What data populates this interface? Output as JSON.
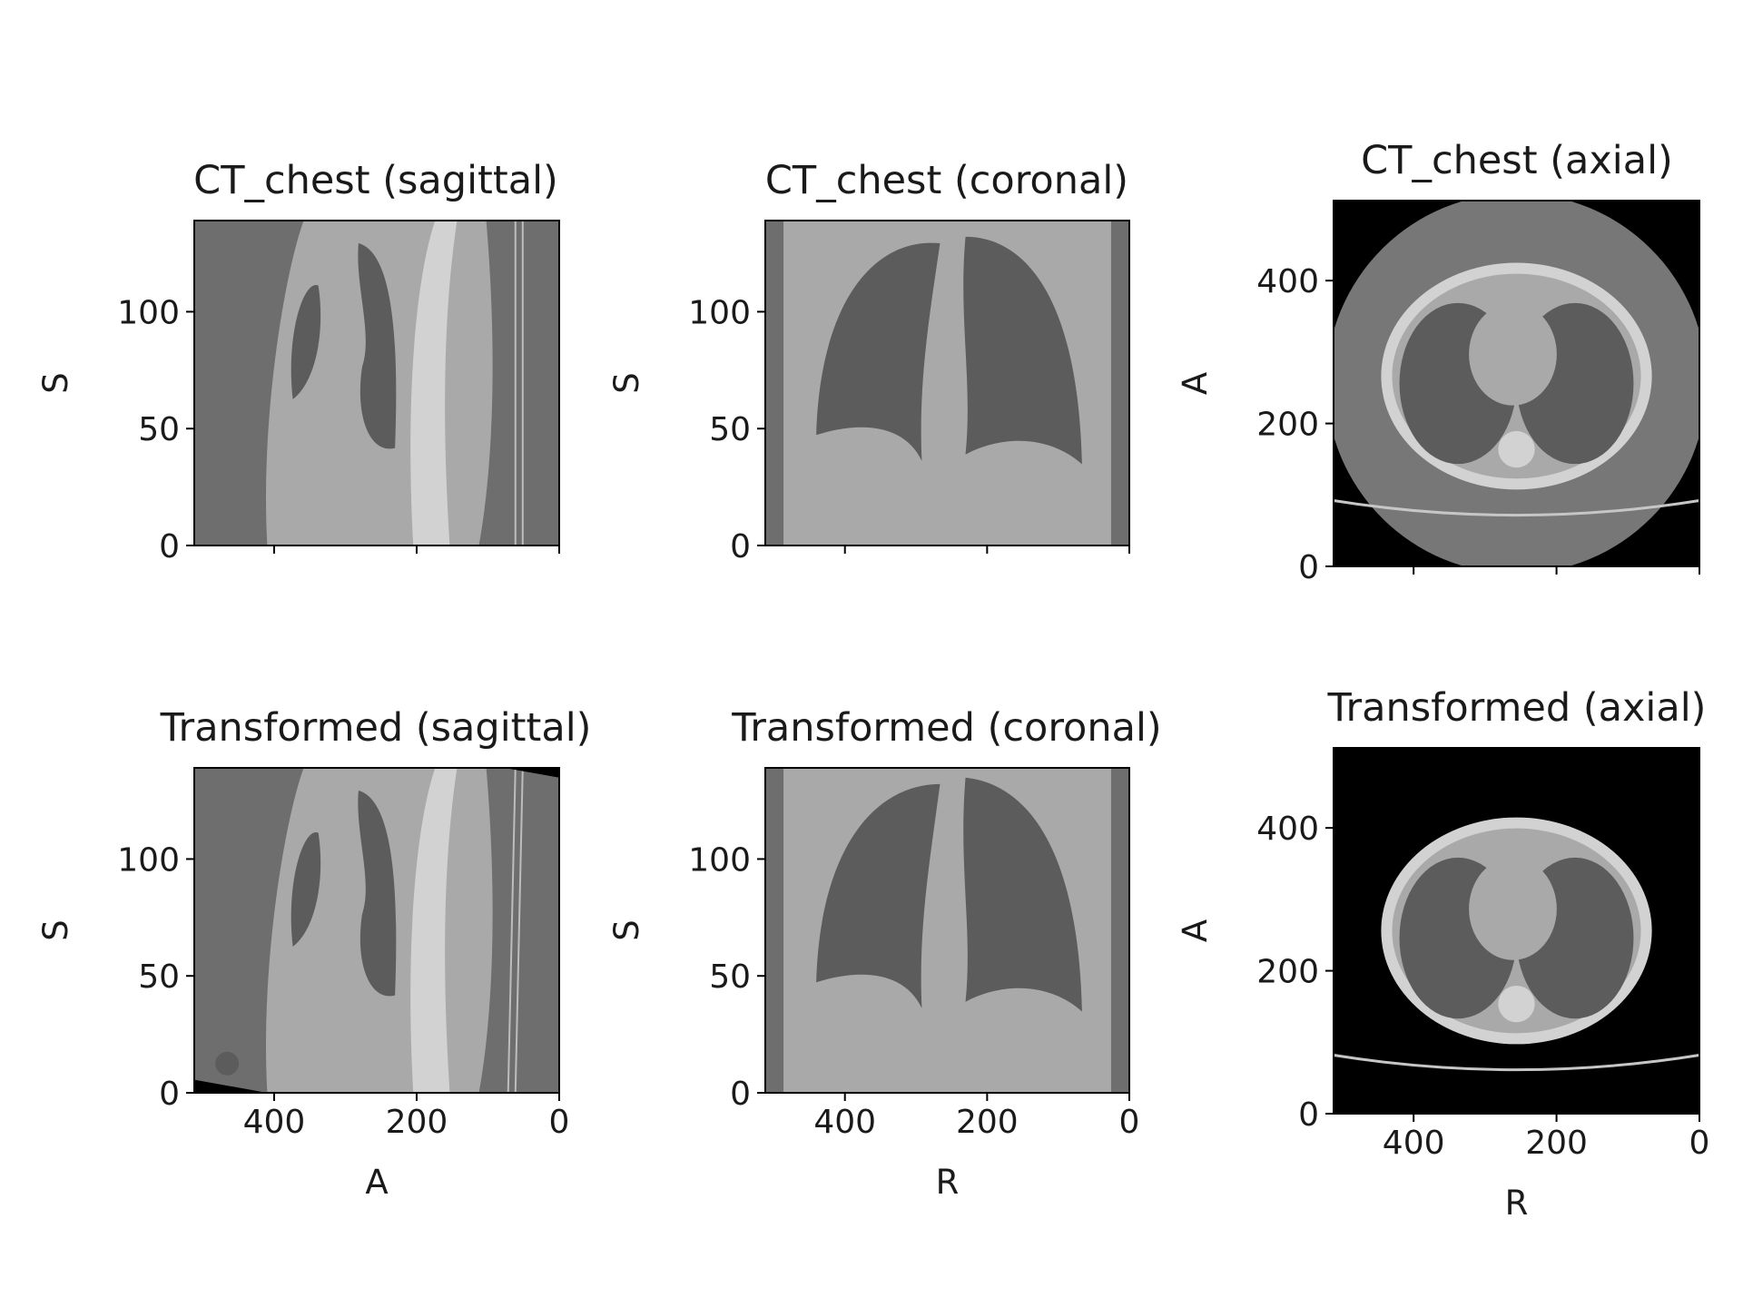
{
  "figure": {
    "background": "#ffffff",
    "panel_colors": {
      "soft_tissue": "#a9a9a9",
      "background_air": "#6e6e6e",
      "lung": "#5c5c5c",
      "bone": "#d2d2d2",
      "outside_fov": "#000000",
      "fov_disc": "#777777"
    }
  },
  "chart_data": [
    {
      "type": "image",
      "title": "CT_chest (sagittal)",
      "view": "sagittal",
      "xlabel": "",
      "ylabel": "S",
      "xlim": [
        512,
        0
      ],
      "ylim": [
        0,
        139
      ],
      "xticks": [
        400,
        200,
        0
      ],
      "xtick_labels": [],
      "yticks": [
        0,
        50,
        100
      ],
      "ytick_labels": [
        "0",
        "50",
        "100"
      ]
    },
    {
      "type": "image",
      "title": "CT_chest (coronal)",
      "view": "coronal",
      "xlabel": "",
      "ylabel": "S",
      "xlim": [
        512,
        0
      ],
      "ylim": [
        0,
        139
      ],
      "xticks": [
        400,
        200,
        0
      ],
      "xtick_labels": [],
      "yticks": [
        0,
        50,
        100
      ],
      "ytick_labels": [
        "0",
        "50",
        "100"
      ]
    },
    {
      "type": "image",
      "title": "CT_chest (axial)",
      "view": "axial",
      "xlabel": "",
      "ylabel": "A",
      "xlim": [
        512,
        0
      ],
      "ylim": [
        0,
        512
      ],
      "xticks": [
        400,
        200,
        0
      ],
      "xtick_labels": [],
      "yticks": [
        0,
        200,
        400
      ],
      "ytick_labels": [
        "0",
        "200",
        "400"
      ]
    },
    {
      "type": "image",
      "title": "Transformed (sagittal)",
      "view": "sagittal",
      "xlabel": "A",
      "ylabel": "S",
      "xlim": [
        512,
        0
      ],
      "ylim": [
        0,
        139
      ],
      "xticks": [
        400,
        200,
        0
      ],
      "xtick_labels": [
        "400",
        "200",
        "0"
      ],
      "yticks": [
        0,
        50,
        100
      ],
      "ytick_labels": [
        "0",
        "50",
        "100"
      ]
    },
    {
      "type": "image",
      "title": "Transformed (coronal)",
      "view": "coronal",
      "xlabel": "R",
      "ylabel": "S",
      "xlim": [
        512,
        0
      ],
      "ylim": [
        0,
        139
      ],
      "xticks": [
        400,
        200,
        0
      ],
      "xtick_labels": [
        "400",
        "200",
        "0"
      ],
      "yticks": [
        0,
        50,
        100
      ],
      "ytick_labels": [
        "0",
        "50",
        "100"
      ]
    },
    {
      "type": "image",
      "title": "Transformed (axial)",
      "view": "axial",
      "xlabel": "R",
      "ylabel": "A",
      "xlim": [
        512,
        0
      ],
      "ylim": [
        0,
        512
      ],
      "xticks": [
        400,
        200,
        0
      ],
      "xtick_labels": [
        "400",
        "200",
        "0"
      ],
      "yticks": [
        0,
        200,
        400
      ],
      "ytick_labels": [
        "0",
        "200",
        "400"
      ]
    }
  ]
}
